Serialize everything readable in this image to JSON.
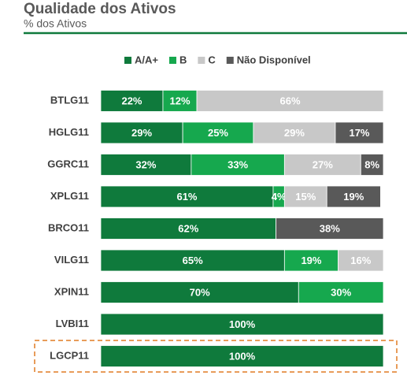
{
  "chart_data": {
    "type": "bar",
    "orientation": "horizontal",
    "stacked": true,
    "title": "Qualidade dos Ativos",
    "subtitle": "% dos Ativos",
    "categories": [
      "BTLG11",
      "HGLG11",
      "GGRC11",
      "XPLG11",
      "BRCO11",
      "VILG11",
      "XPIN11",
      "LVBI11",
      "LGCP11"
    ],
    "xlim": [
      0,
      100
    ],
    "series": [
      {
        "name": "A/A+",
        "color": "#0f7a3c",
        "values": [
          22,
          29,
          32,
          61,
          62,
          65,
          70,
          100,
          100
        ],
        "value_labels": [
          "22%",
          "29%",
          "32%",
          "61%",
          "62%",
          "65%",
          "70%",
          "100%",
          "100%"
        ]
      },
      {
        "name": "B",
        "color": "#16a84e",
        "values": [
          12,
          25,
          33,
          4,
          0,
          19,
          30,
          0,
          0
        ],
        "value_labels": [
          "12%",
          "25%",
          "33%",
          "4%",
          null,
          "19%",
          "30%",
          null,
          null
        ]
      },
      {
        "name": "C",
        "color": "#c8c8c8",
        "values": [
          66,
          29,
          27,
          15,
          0,
          16,
          0,
          0,
          0
        ],
        "value_labels": [
          "66%",
          "29%",
          "27%",
          "15%",
          null,
          "16%",
          null,
          null,
          null
        ]
      },
      {
        "name": "Não Disponível",
        "color": "#595959",
        "values": [
          0,
          17,
          8,
          19,
          38,
          0,
          0,
          0,
          0
        ],
        "value_labels": [
          null,
          "17%",
          "8%",
          "19%",
          "38%",
          null,
          null,
          null,
          null
        ]
      }
    ]
  }
}
